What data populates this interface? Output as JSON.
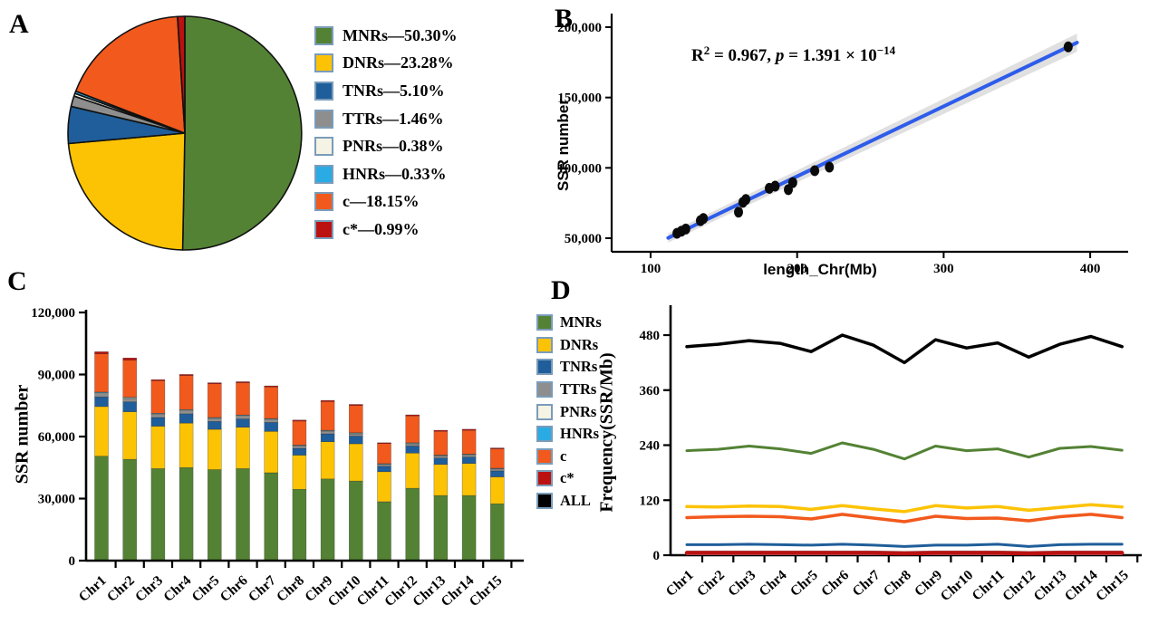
{
  "panel_labels": {
    "a": "A",
    "b": "B",
    "c": "C",
    "d": "D"
  },
  "palette": {
    "MNRs": "#538234",
    "DNRs": "#fcc305",
    "TNRs": "#1f5e9a",
    "TTRs": "#8e8e8e",
    "PNRs": "#f5f3e4",
    "HNRs": "#2aabe4",
    "c": "#f2591d",
    "c*": "#bb1111",
    "ALL": "#000000",
    "swatch_border": "#7a9cba",
    "fit_line": "#2e5cea",
    "ci_band": "#d3d3d3",
    "point": "#0a0a0a"
  },
  "chart_data": [
    {
      "id": "A",
      "type": "pie",
      "slices": [
        {
          "label": "MNRs",
          "pct": 50.3,
          "display": "MNRs—50.30%",
          "color": "#538234"
        },
        {
          "label": "DNRs",
          "pct": 23.28,
          "display": "DNRs—23.28%",
          "color": "#fcc305"
        },
        {
          "label": "TNRs",
          "pct": 5.1,
          "display": "TNRs—5.10%",
          "color": "#1f5e9a"
        },
        {
          "label": "TTRs",
          "pct": 1.46,
          "display": "TTRs—1.46%",
          "color": "#8e8e8e"
        },
        {
          "label": "PNRs",
          "pct": 0.38,
          "display": "PNRs—0.38%",
          "color": "#f5f3e4"
        },
        {
          "label": "HNRs",
          "pct": 0.33,
          "display": "HNRs—0.33%",
          "color": "#2aabe4"
        },
        {
          "label": "c",
          "pct": 18.15,
          "display": "c—18.15%",
          "color": "#f2591d"
        },
        {
          "label": "c*",
          "pct": 0.99,
          "display": "c*—0.99%",
          "color": "#bb1111"
        }
      ]
    },
    {
      "id": "B",
      "type": "scatter",
      "xlabel": "length_Chr(Mb)",
      "ylabel": "SSR number",
      "xlim": [
        73,
        425
      ],
      "ylim": [
        40000,
        210000
      ],
      "x_ticks": [
        {
          "v": 100,
          "t": "100"
        },
        {
          "v": 200,
          "t": "200"
        },
        {
          "v": 300,
          "t": "300"
        },
        {
          "v": 400,
          "t": "400"
        }
      ],
      "y_ticks": [
        {
          "v": 50000,
          "t": "50,000"
        },
        {
          "v": 100000,
          "t": "100,000"
        },
        {
          "v": 150000,
          "t": "150,000"
        },
        {
          "v": 200000,
          "t": "200,000"
        }
      ],
      "annotation": {
        "r2_base": "R",
        "r2_sup": "2",
        "r2_mid": " = 0.967, ",
        "p_var": "p",
        "p_mid": " = 1.391 × 10",
        "p_sup": "−14"
      },
      "points": [
        [
          118,
          53500
        ],
        [
          121,
          55000
        ],
        [
          124,
          56500
        ],
        [
          134,
          62500
        ],
        [
          136,
          64000
        ],
        [
          160,
          68500
        ],
        [
          163,
          75500
        ],
        [
          165,
          77500
        ],
        [
          181,
          85500
        ],
        [
          185,
          87000
        ],
        [
          194,
          84500
        ],
        [
          197,
          89500
        ],
        [
          212,
          98000
        ],
        [
          222,
          100500
        ],
        [
          385,
          186000
        ]
      ],
      "fit": {
        "x1": 112,
        "y1": 50200,
        "x2": 391,
        "y2": 189000
      }
    },
    {
      "id": "C",
      "type": "bar",
      "stacked": true,
      "ylabel": "SSR number",
      "ylim": [
        0,
        120000
      ],
      "categories": [
        "Chr1",
        "Chr2",
        "Chr3",
        "Chr4",
        "Chr5",
        "Chr6",
        "Chr7",
        "Chr8",
        "Chr9",
        "Chr10",
        "Chr11",
        "Chr12",
        "Chr13",
        "Chr14",
        "Chr15"
      ],
      "y_ticks": [
        {
          "v": 0,
          "t": "0"
        },
        {
          "v": 30000,
          "t": "30,000"
        },
        {
          "v": 60000,
          "t": "60,000"
        },
        {
          "v": 90000,
          "t": "90,000"
        },
        {
          "v": 120000,
          "t": "120,000"
        }
      ],
      "series": [
        {
          "name": "MNRs",
          "values": [
            50500,
            49000,
            44500,
            45000,
            44000,
            44500,
            42500,
            34500,
            39500,
            38500,
            28500,
            35000,
            31500,
            31500,
            27500
          ]
        },
        {
          "name": "DNRs",
          "values": [
            24000,
            23000,
            20500,
            21500,
            19500,
            20000,
            20000,
            16500,
            18000,
            18000,
            14500,
            17000,
            15000,
            15500,
            13000
          ]
        },
        {
          "name": "TNRs",
          "values": [
            4700,
            4800,
            4200,
            4500,
            3800,
            4000,
            4300,
            3300,
            3800,
            3700,
            2600,
            3400,
            3100,
            3100,
            2900
          ]
        },
        {
          "name": "TTRs",
          "values": [
            1600,
            1500,
            1400,
            1400,
            1300,
            1300,
            1300,
            1100,
            1200,
            1100,
            900,
            1100,
            1000,
            1000,
            900
          ]
        },
        {
          "name": "PNRs",
          "values": [
            380,
            370,
            330,
            340,
            330,
            330,
            320,
            260,
            290,
            290,
            220,
            270,
            240,
            240,
            210
          ]
        },
        {
          "name": "HNRs",
          "values": [
            330,
            320,
            290,
            300,
            280,
            290,
            280,
            230,
            250,
            250,
            190,
            230,
            210,
            210,
            180
          ]
        },
        {
          "name": "c",
          "values": [
            18500,
            18000,
            15800,
            16500,
            16300,
            15600,
            15300,
            11600,
            13900,
            13200,
            9700,
            13000,
            11500,
            11500,
            9400
          ]
        },
        {
          "name": "c*",
          "values": [
            1000,
            1000,
            500,
            500,
            500,
            500,
            500,
            500,
            550,
            500,
            400,
            500,
            500,
            500,
            400
          ]
        }
      ]
    },
    {
      "id": "D",
      "type": "line",
      "ylabel": "Frequency(SSR/Mb)",
      "ylim": [
        0,
        520
      ],
      "categories": [
        "Chr1",
        "Chr2",
        "Chr3",
        "Chr4",
        "Chr5",
        "Chr6",
        "Chr7",
        "Chr8",
        "Chr9",
        "Chr10",
        "Chr11",
        "Chr12",
        "Chr13",
        "Chr14",
        "Chr15"
      ],
      "y_ticks": [
        {
          "v": 0,
          "t": "0"
        },
        {
          "v": 120,
          "t": "120"
        },
        {
          "v": 240,
          "t": "240"
        },
        {
          "v": 360,
          "t": "360"
        },
        {
          "v": 480,
          "t": "480"
        }
      ],
      "legend_order": [
        "MNRs",
        "DNRs",
        "TNRs",
        "TTRs",
        "PNRs",
        "HNRs",
        "c",
        "c*",
        "ALL"
      ],
      "draw_order": [
        "HNRs",
        "PNRs",
        "TTRs",
        "c*",
        "TNRs",
        "c",
        "DNRs",
        "MNRs",
        "ALL"
      ],
      "stroke_width": {
        "MNRs": 3,
        "DNRs": 3.5,
        "TNRs": 3,
        "TTRs": 2,
        "PNRs": 1.5,
        "HNRs": 1.5,
        "c": 3.5,
        "c*": 4.5,
        "ALL": 3.5
      },
      "series": [
        {
          "name": "MNRs",
          "values": [
            228,
            231,
            238,
            232,
            222,
            245,
            231,
            210,
            238,
            228,
            232,
            214,
            233,
            237,
            229
          ]
        },
        {
          "name": "DNRs",
          "values": [
            106,
            105,
            107,
            106,
            100,
            108,
            101,
            95,
            108,
            103,
            106,
            98,
            104,
            110,
            105
          ]
        },
        {
          "name": "TNRs",
          "values": [
            23,
            23,
            24,
            23,
            22,
            24,
            22,
            19,
            22,
            22,
            24,
            19,
            23,
            24,
            24
          ]
        },
        {
          "name": "TTRs",
          "values": [
            8,
            8,
            8,
            8,
            8,
            8,
            8,
            7,
            8,
            8,
            8,
            7,
            8,
            8,
            8
          ]
        },
        {
          "name": "PNRs",
          "values": [
            2,
            2,
            2,
            2,
            2,
            2,
            2,
            2,
            2,
            2,
            2,
            2,
            2,
            2,
            2
          ]
        },
        {
          "name": "HNRs",
          "values": [
            1.5,
            1.5,
            1.5,
            1.5,
            1.5,
            1.5,
            1.5,
            1.5,
            1.5,
            1.5,
            1.5,
            1.5,
            1.5,
            1.5,
            1.5
          ]
        },
        {
          "name": "c",
          "values": [
            82,
            84,
            85,
            84,
            79,
            89,
            81,
            73,
            85,
            80,
            81,
            75,
            84,
            89,
            82
          ]
        },
        {
          "name": "c*",
          "values": [
            5,
            5,
            5,
            5,
            5,
            5,
            5,
            4,
            5,
            5,
            5,
            4,
            5,
            5,
            5
          ]
        },
        {
          "name": "ALL",
          "values": [
            455,
            460,
            468,
            462,
            444,
            480,
            458,
            420,
            470,
            452,
            463,
            432,
            460,
            477,
            455
          ]
        }
      ]
    }
  ]
}
